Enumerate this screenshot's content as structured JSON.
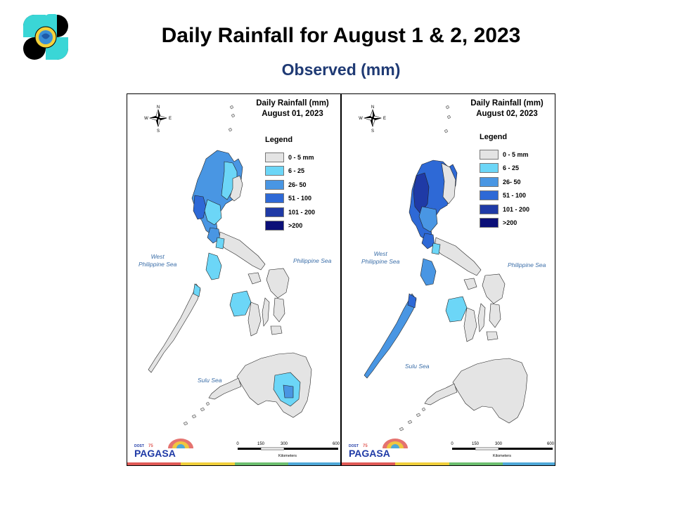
{
  "slide": {
    "title": "Daily Rainfall for August 1 & 2, 2023",
    "subtitle": "Observed (mm)"
  },
  "legend": {
    "title": "Legend",
    "classes": [
      {
        "label": "0 - 5 mm",
        "color": "#e4e4e4"
      },
      {
        "label": "6 - 25",
        "color": "#6cd6f7"
      },
      {
        "label": "26- 50",
        "color": "#4996e3"
      },
      {
        "label": "51 - 100",
        "color": "#2e69d6"
      },
      {
        "label": "101 - 200",
        "color": "#1f3aa6"
      },
      {
        "label": ">200",
        "color": "#0b0f78"
      }
    ]
  },
  "panels": [
    {
      "title_line1": "Daily Rainfall (mm)",
      "title_line2": "August 01, 2023",
      "legend_title": "Legend",
      "legend_labels": [
        "0 - 5 mm",
        "6 - 25",
        "26- 50",
        "51 - 100",
        "101 - 200",
        ">200"
      ],
      "seas": {
        "west1": "West",
        "west2": "Philippine Sea",
        "east": "Philippine Sea",
        "sulu": "Sulu Sea"
      },
      "compass": {
        "n": "N",
        "s": "S",
        "e": "E",
        "w": "W"
      },
      "scale": {
        "ticks": [
          "0",
          "150",
          "300",
          "600"
        ],
        "unit": "Kilometers"
      },
      "brand": {
        "small": "DOST",
        "year": "75",
        "name": "PAGASA"
      }
    },
    {
      "title_line1": "Daily Rainfall (mm)",
      "title_line2": "August 02, 2023",
      "legend_title": "Legend",
      "legend_labels": [
        "0 - 5 mm",
        "6 - 25",
        "26- 50",
        "51 - 100",
        "101 - 200",
        ">200"
      ],
      "seas": {
        "west1": "West",
        "west2": "Philippine Sea",
        "east": "Philippine Sea",
        "sulu": "Sulu Sea"
      },
      "compass": {
        "n": "N",
        "s": "S",
        "e": "E",
        "w": "W"
      },
      "scale": {
        "ticks": [
          "0",
          "150",
          "300",
          "600"
        ],
        "unit": "Kilometers"
      },
      "brand": {
        "small": "DOST",
        "year": "75",
        "name": "PAGASA"
      }
    }
  ],
  "colors": {
    "title": "#000000",
    "subtitle": "#1f3a74",
    "land_border": "#222222",
    "sea_label": "#3b6ea8",
    "brand_bar": [
      "#e05a56",
      "#f1cf3b",
      "#6cbf6f",
      "#4fa8d8"
    ]
  }
}
